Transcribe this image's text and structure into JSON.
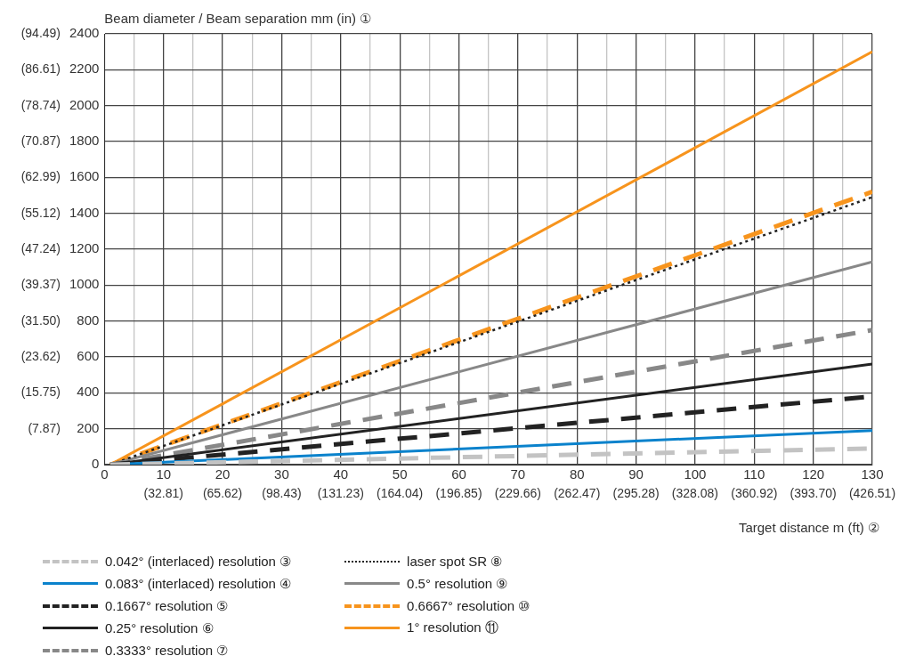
{
  "chart_data": {
    "type": "line",
    "ylabel": "Beam diameter / Beam separation mm (in) ①",
    "xlabel": "Target distance m (ft) ②",
    "xlim": [
      0,
      130
    ],
    "xticks": [
      0,
      {
        "value": 5,
        "label": null
      },
      10,
      {
        "value": 15,
        "label": null
      },
      20,
      {
        "value": 25,
        "label": null
      },
      30,
      {
        "value": 35,
        "label": null
      },
      40,
      {
        "value": 45,
        "label": null
      },
      50,
      {
        "value": 55,
        "label": null
      },
      60,
      {
        "value": 65,
        "label": null
      },
      70,
      {
        "value": 75,
        "label": null
      },
      80,
      {
        "value": 85,
        "label": null
      },
      90,
      {
        "value": 95,
        "label": null
      },
      100,
      {
        "value": 105,
        "label": null
      },
      110,
      {
        "value": 115,
        "label": null
      },
      120,
      {
        "value": 125,
        "label": null
      },
      130
    ],
    "x2lim": [
      0,
      426.51
    ],
    "x2ticks": [
      {
        "value": 32.81,
        "label": "(32.81)"
      },
      {
        "value": 65.62,
        "label": "(65.62)"
      },
      {
        "value": 98.43,
        "label": "(98.43)"
      },
      {
        "value": 131.23,
        "label": "(131.23)"
      },
      {
        "value": 164.04,
        "label": "(164.04)"
      },
      {
        "value": 196.85,
        "label": "(196.85)"
      },
      {
        "value": 229.66,
        "label": "(229.66)"
      },
      {
        "value": 262.47,
        "label": "(262.47)"
      },
      {
        "value": 295.28,
        "label": "(295.28)"
      },
      {
        "value": 328.08,
        "label": "(328.08)"
      },
      {
        "value": 360.92,
        "label": "(360.92)"
      },
      {
        "value": 393.7,
        "label": "(393.70)"
      },
      {
        "value": 426.51,
        "label": "(426.51)"
      }
    ],
    "ylim": [
      0,
      2400
    ],
    "yticks": [
      0,
      200,
      400,
      600,
      800,
      1000,
      1200,
      1400,
      1600,
      1800,
      2000,
      2200,
      2400
    ],
    "y2lim": [
      0,
      94.49
    ],
    "y2ticks": [
      {
        "value": 7.87,
        "label": "(7.87)"
      },
      {
        "value": 15.75,
        "label": "(15.75)"
      },
      {
        "value": 23.62,
        "label": "(23.62)"
      },
      {
        "value": 31.5,
        "label": "(31.50)"
      },
      {
        "value": 39.37,
        "label": "(39.37)"
      },
      {
        "value": 47.24,
        "label": "(47.24)"
      },
      {
        "value": 55.12,
        "label": "(55.12)"
      },
      {
        "value": 62.99,
        "label": "(62.99)"
      },
      {
        "value": 70.87,
        "label": "(70.87)"
      },
      {
        "value": 78.74,
        "label": "(78.74)"
      },
      {
        "value": 86.61,
        "label": "(86.61)"
      },
      {
        "value": 94.49,
        "label": "(94.49)"
      }
    ],
    "grid": true,
    "legend": "bottom",
    "marker": "none",
    "x": [
      1,
      130
    ],
    "series": [
      {
        "name": "0.042° (interlaced) resolution ③",
        "color": "#c3c3c3",
        "line_style": "dashed",
        "values": [
          0,
          90
        ]
      },
      {
        "name": "0.083° (interlaced) resolution ④",
        "color": "#0a82cc",
        "line_style": "solid",
        "values": [
          0,
          190
        ]
      },
      {
        "name": "0.1667° resolution ⑤",
        "color": "#222222",
        "line_style": "dashed",
        "values": [
          0,
          380
        ]
      },
      {
        "name": "0.25° resolution ⑥",
        "color": "#222222",
        "line_style": "solid",
        "values": [
          0,
          560
        ]
      },
      {
        "name": "0.3333° resolution ⑦",
        "color": "#888888",
        "line_style": "dashed",
        "values": [
          0,
          750
        ]
      },
      {
        "name": "laser spot SR ⑧",
        "color": "#222222",
        "line_style": "dotted",
        "values": [
          0,
          1490
        ]
      },
      {
        "name": "0.5° resolution ⑨",
        "color": "#888888",
        "line_style": "solid",
        "values": [
          0,
          1130
        ]
      },
      {
        "name": "0.6667° resolution ⑩",
        "color": "#f7941d",
        "line_style": "dashed",
        "values": [
          0,
          1520
        ]
      },
      {
        "name": "1° resolution ⑪",
        "color": "#f7941d",
        "line_style": "solid",
        "values": [
          0,
          2300
        ]
      }
    ]
  }
}
